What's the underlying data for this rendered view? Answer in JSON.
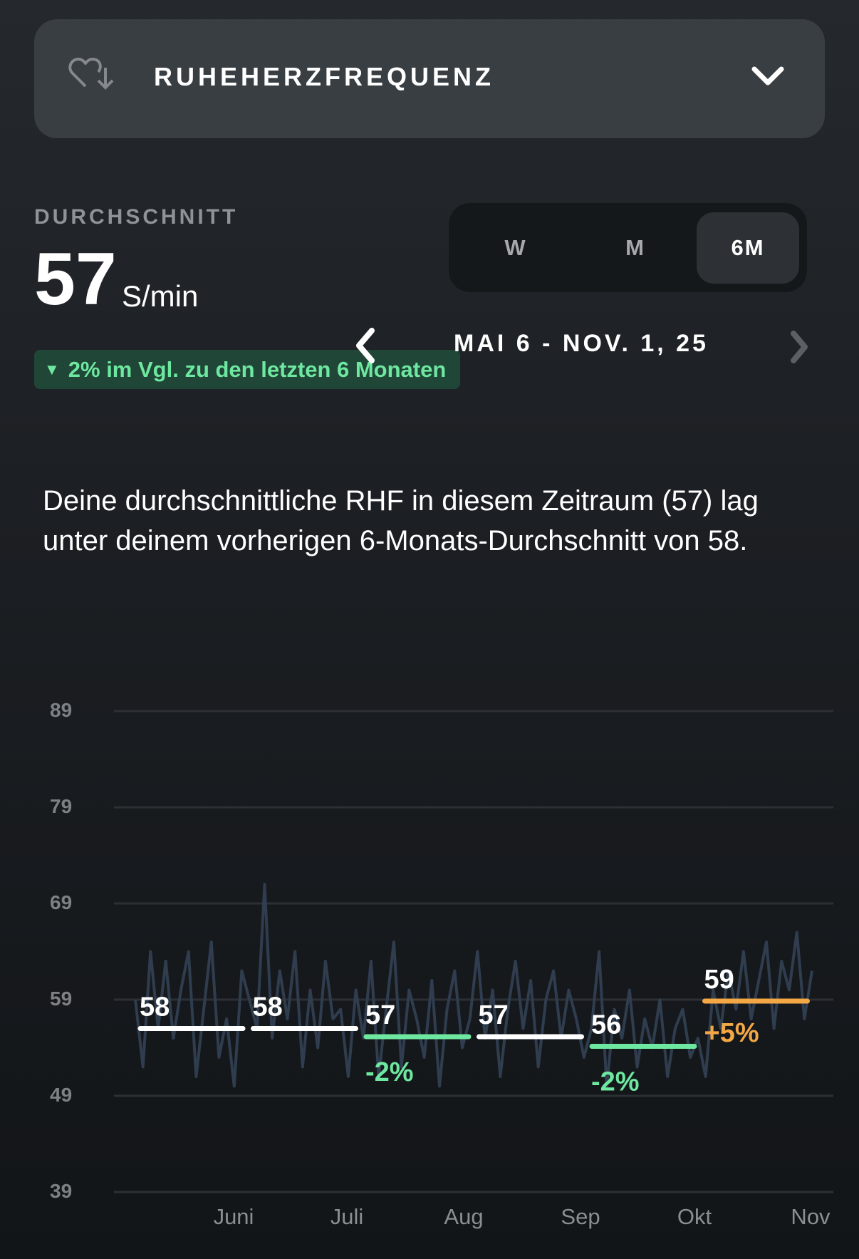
{
  "header": {
    "title": "RUHEHERZFREQUENZ",
    "icon": "heart-down-icon"
  },
  "summary": {
    "label": "DURCHSCHNITT",
    "value": "57",
    "unit": "S/min",
    "change_text": "2% im Vgl. zu den letzten 6 Monaten",
    "change_color": "#6ee7a0"
  },
  "range_tabs": [
    {
      "label": "W",
      "selected": false
    },
    {
      "label": "M",
      "selected": false
    },
    {
      "label": "6M",
      "selected": true
    }
  ],
  "date_range": "MAI 6 - NOV. 1, 25",
  "description": "Deine durchschnittliche RHF in diesem Zeitraum (57) lag unter deinem vorherigen 6-Monats-Durchschnitt von 58.",
  "chart_data": {
    "type": "line",
    "ylim": [
      39,
      89
    ],
    "yticks": [
      "89",
      "79",
      "69",
      "59",
      "49",
      "39"
    ],
    "ytick_values": [
      89,
      79,
      69,
      59,
      49,
      39
    ],
    "xticks": [
      "Juni",
      "Juli",
      "Aug",
      "Sep",
      "Okt",
      "Nov"
    ],
    "series": [
      {
        "name": "RHF",
        "color": "#2f3d4f",
        "values": [
          59,
          52,
          64,
          56,
          63,
          55,
          60,
          64,
          51,
          58,
          65,
          53,
          57,
          50,
          62,
          59,
          56,
          71,
          55,
          62,
          57,
          64,
          52,
          60,
          54,
          63,
          57,
          58,
          51,
          60,
          55,
          63,
          51,
          58,
          65,
          52,
          60,
          57,
          53,
          61,
          50,
          58,
          62,
          54,
          57,
          64,
          55,
          60,
          51,
          58,
          63,
          56,
          61,
          52,
          59,
          62,
          55,
          60,
          57,
          53,
          56,
          64,
          50,
          58,
          55,
          60,
          52,
          57,
          54,
          59,
          51,
          56,
          58,
          53,
          55,
          51,
          60,
          56,
          62,
          58,
          64,
          57,
          61,
          65,
          56,
          63,
          60,
          66,
          57,
          62
        ]
      }
    ],
    "monthly_averages": [
      {
        "value": 58,
        "label": "58",
        "change": "",
        "color": "#ffffff"
      },
      {
        "value": 58,
        "label": "58",
        "change": "",
        "color": "#ffffff"
      },
      {
        "value": 57,
        "label": "57",
        "change": "-2%",
        "color": "#6ee7a0"
      },
      {
        "value": 57,
        "label": "57",
        "change": "",
        "color": "#ffffff"
      },
      {
        "value": 56,
        "label": "56",
        "change": "-2%",
        "color": "#6ee7a0"
      },
      {
        "value": 59,
        "label": "59",
        "change": "+5%",
        "color": "#f3a845"
      }
    ]
  }
}
